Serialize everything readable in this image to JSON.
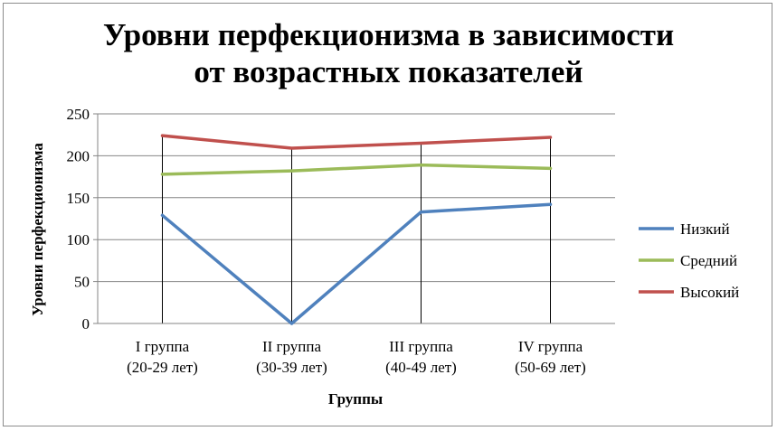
{
  "chart_data": {
    "type": "line",
    "title_lines": [
      "Уровни перфекционизма в зависимости",
      "от возрастных показателей"
    ],
    "xlabel": "Группы",
    "ylabel": "Уровни перфекционизма",
    "ylim": [
      0,
      250
    ],
    "yticks": [
      "0",
      "50",
      "100",
      "150",
      "200",
      "250"
    ],
    "categories": [
      [
        "I группа",
        "(20-29 лет)"
      ],
      [
        "II группа",
        "(30-39 лет)"
      ],
      [
        "III группа",
        "(40-49 лет)"
      ],
      [
        "IV группа",
        "(50-69 лет)"
      ]
    ],
    "series": [
      {
        "name": "Низкий",
        "color": "#4f81bd",
        "values": [
          129,
          0,
          133,
          142
        ]
      },
      {
        "name": "Средний",
        "color": "#9bbb59",
        "values": [
          178,
          182,
          189,
          185
        ]
      },
      {
        "name": "Высокий",
        "color": "#c0504d",
        "values": [
          224,
          209,
          215,
          222
        ]
      }
    ],
    "grid": true,
    "legend_position": "right"
  }
}
